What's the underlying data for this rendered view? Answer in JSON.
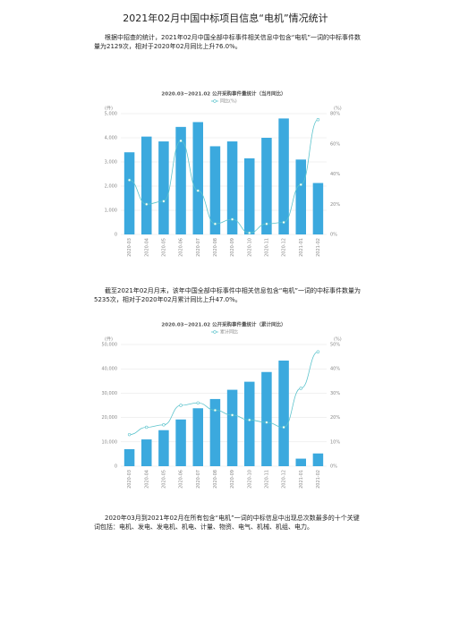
{
  "document": {
    "title": "2021年02月中国中标项目信息“电机”情况统计",
    "paragraphs": [
      "根据中招查的统计，2021年02月中国全部中标事件相关信息中包含“电机”一词的中标事件数量为2129次，相对于2020年02月同比上升76.0%。",
      "截至2021年02月月末，该年中国全部中标事件中相关信息包含“电机”一词的中标事件数量为5235次，相对于2020年02月累计同比上升47.0%。",
      "2020年03月到2021年02月在所有包含“电机”一词的中标信息中出现总次数最多的十个关键词包括：电机、发电、发电机、机电、计量、物资、电气、机械、机组、电力。"
    ]
  },
  "chart_data": [
    {
      "type": "bar",
      "title": "2020.03~2021.02 公开采购事件量统计（当月同比）",
      "ylabel": "(件)",
      "y2label": "(%)",
      "categories": [
        "2020-03",
        "2020-04",
        "2020-05",
        "2020-06",
        "2020-07",
        "2020-08",
        "2020-09",
        "2020-10",
        "2020-11",
        "2020-12",
        "2021-01",
        "2021-02"
      ],
      "series": [
        {
          "color": "#3ba9de",
          "values": [
            3400,
            4050,
            3850,
            4450,
            4650,
            3650,
            3850,
            3150,
            4000,
            4800,
            3100,
            2129
          ]
        },
        {
          "name": "同比(%)",
          "type": "line",
          "axis": "y2",
          "color": "#5bc3cc",
          "values": [
            36,
            20,
            22,
            62,
            29,
            7,
            10,
            1,
            7,
            8,
            33,
            76
          ]
        }
      ],
      "ylim": [
        0,
        5000
      ],
      "yticks": [
        0,
        {
          "value": 1000,
          "label": "1,000"
        },
        {
          "value": 2000,
          "label": "2,000"
        },
        {
          "value": 3000,
          "label": "3,000"
        },
        {
          "value": 4000,
          "label": "4,000"
        },
        {
          "value": 5000,
          "label": "5,000"
        }
      ],
      "y2lim": [
        0,
        80
      ],
      "y2ticks": [
        {
          "value": 0,
          "label": "0%"
        },
        {
          "value": 20,
          "label": "20%"
        },
        {
          "value": 40,
          "label": "40%"
        },
        {
          "value": 60,
          "label": "60%"
        },
        {
          "value": 80,
          "label": "80%"
        }
      ],
      "grid": true
    },
    {
      "type": "bar",
      "title": "2020.03~2021.02 公开采购事件量统计（累计同比）",
      "ylabel": "(件)",
      "y2label": "(%)",
      "categories": [
        "2020-03",
        "2020-04",
        "2020-05",
        "2020-06",
        "2020-07",
        "2020-08",
        "2020-09",
        "2020-10",
        "2020-11",
        "2020-12",
        "2021-01",
        "2021-02"
      ],
      "series": [
        {
          "color": "#3ba9de",
          "values": [
            7000,
            11000,
            14800,
            19200,
            23800,
            27600,
            31400,
            34700,
            38700,
            43400,
            3100,
            5235
          ]
        },
        {
          "name": "累计同比",
          "type": "line",
          "axis": "y2",
          "color": "#5bc3cc",
          "values": [
            13,
            16,
            17,
            25,
            26,
            23,
            21,
            19,
            18,
            16,
            32,
            47
          ]
        }
      ],
      "ylim": [
        0,
        50000
      ],
      "yticks": [
        0,
        {
          "value": 10000,
          "label": "10,000"
        },
        {
          "value": 20000,
          "label": "20,000"
        },
        {
          "value": 30000,
          "label": "30,000"
        },
        {
          "value": 40000,
          "label": "40,000"
        },
        {
          "value": 50000,
          "label": "50,000"
        }
      ],
      "y2lim": [
        0,
        50
      ],
      "y2ticks": [
        {
          "value": 0,
          "label": "0%"
        },
        {
          "value": 10,
          "label": "10%"
        },
        {
          "value": 20,
          "label": "20%"
        },
        {
          "value": 30,
          "label": "30%"
        },
        {
          "value": 40,
          "label": "40%"
        },
        {
          "value": 50,
          "label": "50%"
        }
      ],
      "grid": true
    }
  ]
}
